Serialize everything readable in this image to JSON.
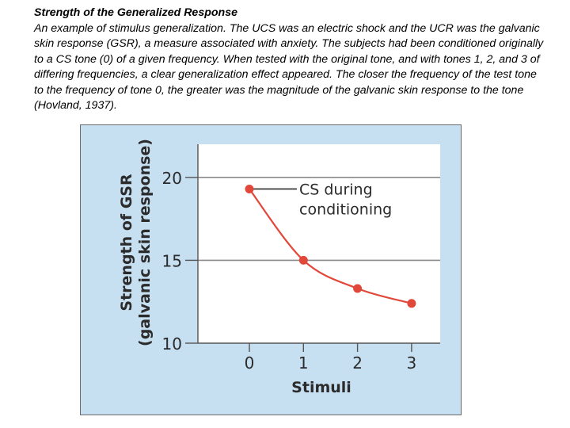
{
  "caption": {
    "title": "Strength of the Generalized Response",
    "body": "An example of stimulus generalization. The UCS was an electric shock and the UCR was the galvanic skin response (GSR), a measure associated with anxiety. The subjects had been conditioned originally to a CS tone (0) of a given frequency. When tested with the original tone, and with tones 1, 2, and 3 of differing frequencies, a clear generalization effect appeared. The closer the frequency of the test tone to the frequency of tone 0, the greater was the magnitude of the galvanic skin response to the tone (Hovland, 1937)."
  },
  "colors": {
    "figure_bg": "#c6dff1",
    "plot_bg": "#ffffff",
    "series": "#e2483a",
    "grid": "#8a8a8a"
  },
  "chart_data": {
    "type": "line",
    "title": "",
    "xlabel": "Stimuli",
    "ylabel_line1": "Strength of GSR",
    "ylabel_line2": "(galvanic skin response)",
    "x": [
      "0",
      "1",
      "2",
      "3"
    ],
    "y_ticks": [
      "20",
      "15",
      "10"
    ],
    "y_tick_values": [
      20,
      15,
      10
    ],
    "ylim": [
      10,
      22
    ],
    "grid": true,
    "series": [
      {
        "name": "GSR",
        "values": [
          19.3,
          15.0,
          13.3,
          12.4
        ]
      }
    ],
    "annotation_line1": "CS during",
    "annotation_line2": "conditioning",
    "annotation_point_index": 0
  }
}
